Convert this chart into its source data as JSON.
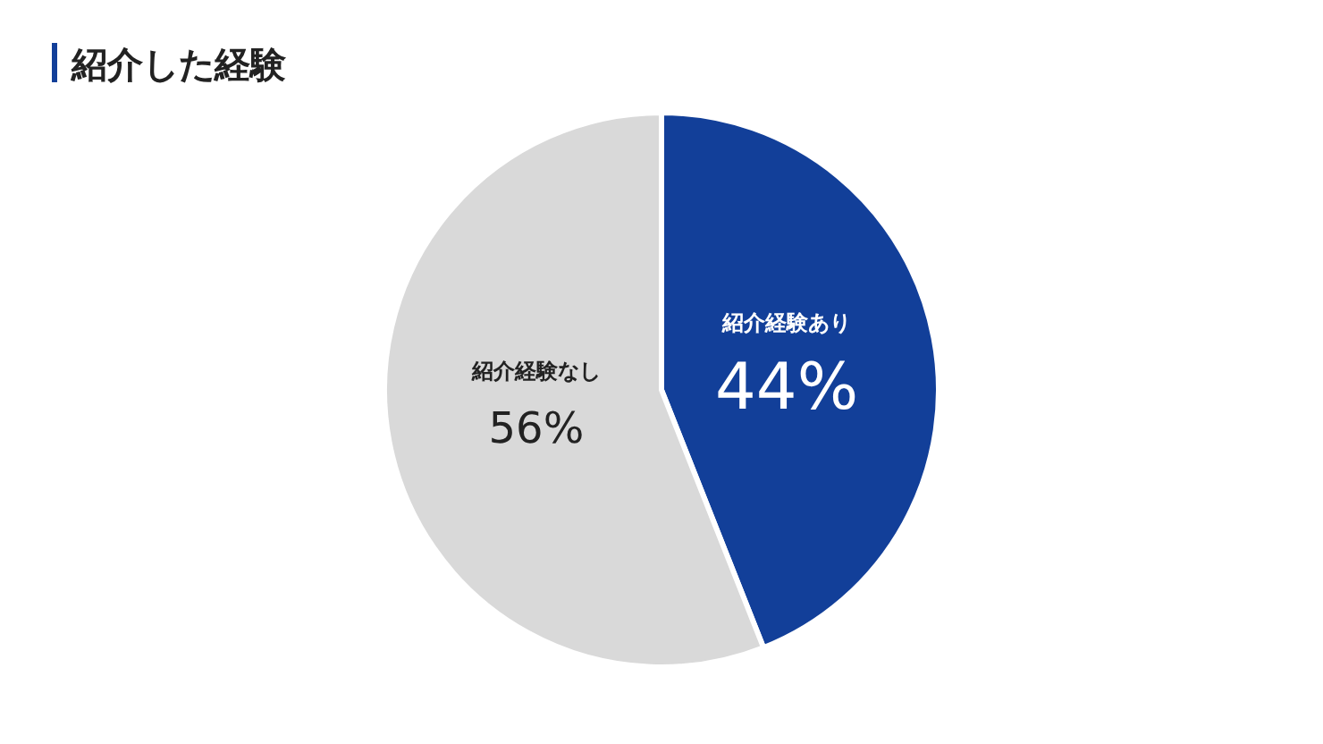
{
  "chart_data": {
    "type": "pie",
    "title": "紹介した経験",
    "categories": [
      "紹介経験あり",
      "紹介経験なし"
    ],
    "values": [
      44,
      56
    ],
    "colors": [
      "#123f99",
      "#d9d9d9"
    ],
    "value_labels": [
      "44%",
      "56%"
    ]
  }
}
